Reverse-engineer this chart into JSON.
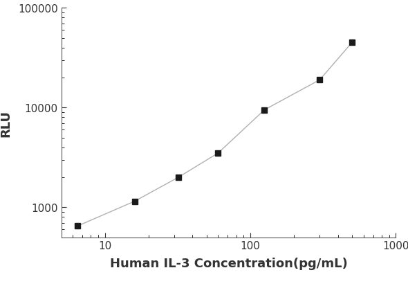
{
  "x": [
    6.5,
    16,
    32,
    60,
    125,
    300,
    500
  ],
  "y": [
    650,
    1150,
    2000,
    3500,
    9500,
    19000,
    45000
  ],
  "xlabel": "Human IL-3 Concentration(pg/mL)",
  "ylabel": "RLU",
  "xlim": [
    5,
    1000
  ],
  "ylim": [
    500,
    100000
  ],
  "xticks": [
    10,
    100,
    1000
  ],
  "yticks": [
    1000,
    10000,
    100000
  ],
  "line_color": "#b0b0b0",
  "marker_color": "#1a1a1a",
  "marker_size": 6,
  "line_width": 1.0,
  "bg_color": "#ffffff",
  "xlabel_fontsize": 13,
  "ylabel_fontsize": 13,
  "tick_fontsize": 11,
  "tick_label_color": "#333333"
}
